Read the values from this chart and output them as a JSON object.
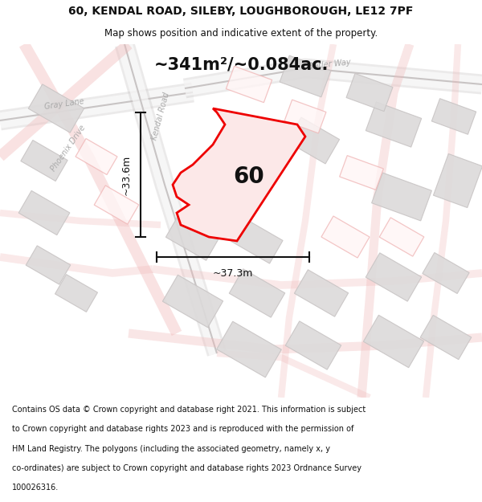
{
  "title_line1": "60, KENDAL ROAD, SILEBY, LOUGHBOROUGH, LE12 7PF",
  "title_line2": "Map shows position and indicative extent of the property.",
  "area_label": "~341m²/~0.084ac.",
  "property_number": "60",
  "dim_vertical": "~33.6m",
  "dim_horizontal": "~37.3m",
  "footer_lines": [
    "Contains OS data © Crown copyright and database right 2021. This information is subject",
    "to Crown copyright and database rights 2023 and is reproduced with the permission of",
    "HM Land Registry. The polygons (including the associated geometry, namely x, y",
    "co-ordinates) are subject to Crown copyright and database rights 2023 Ordnance Survey",
    "100026316."
  ],
  "bg_color": "#f7f4f4",
  "map_bg": "#f9f7f7",
  "property_fill": "#fce8e8",
  "property_edge": "#ee0000",
  "road_pink": "#f0b8b8",
  "road_gray": "#c8c4c4",
  "building_gray": "#dcdada",
  "building_gray_ec": "#c8c4c4",
  "building_pink_ec": "#f0b8b8",
  "dim_color": "#111111",
  "text_color": "#111111",
  "road_label_color": "#aaaaaa",
  "footer_bg": "#ffffff",
  "title_bg": "#ffffff"
}
